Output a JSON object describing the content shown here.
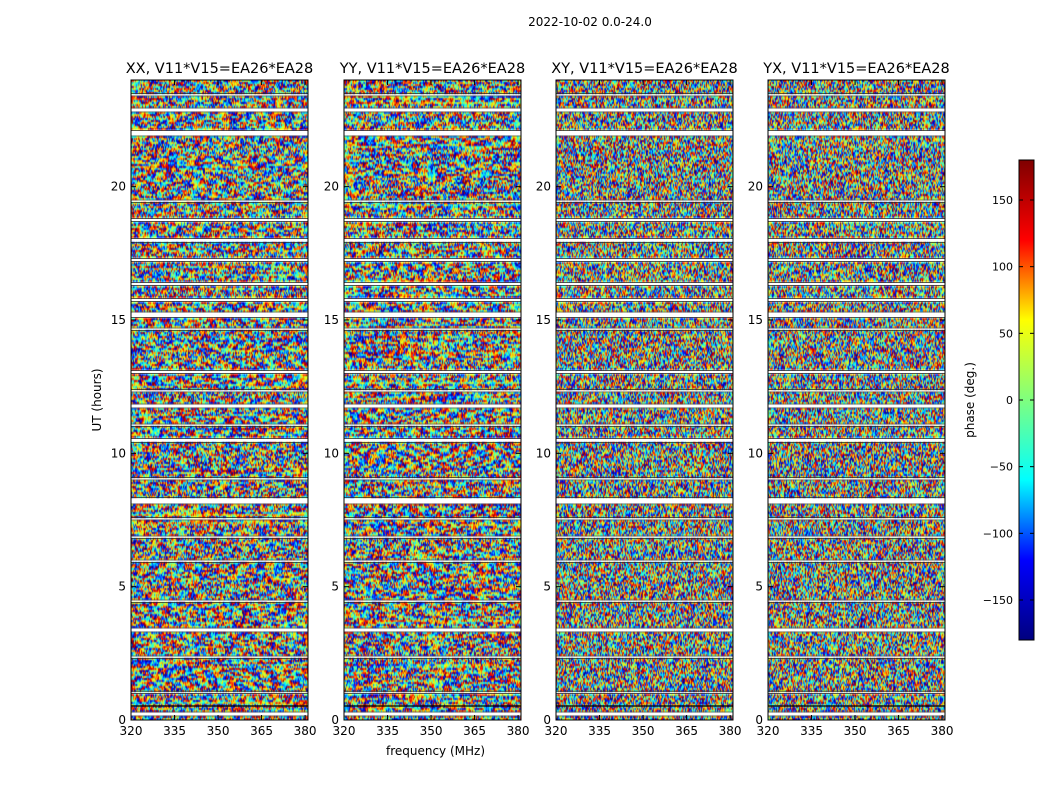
{
  "figure": {
    "suptitle": "2022-10-02 0.0-24.0"
  },
  "colorbar": {
    "label": "phase (deg.)",
    "range": [
      -180,
      180
    ],
    "ticks": [
      150,
      100,
      50,
      0,
      -50,
      -100,
      -150
    ],
    "tick_labels": [
      "150",
      "100",
      "50",
      "0",
      "−50",
      "−100",
      "−150"
    ],
    "colormap": "jet",
    "colors": [
      "#00007f",
      "#0000ff",
      "#00ffff",
      "#7fff7f",
      "#ffff00",
      "#ff0000",
      "#7f0000"
    ]
  },
  "chart_data": [
    {
      "type": "heatmap",
      "title": "XX, V11*V15=EA26*EA28",
      "xlabel": "",
      "ylabel": "UT (hours)",
      "xlim": [
        320,
        381
      ],
      "ylim": [
        0,
        24
      ],
      "xticks": [
        320,
        335,
        350,
        365,
        380
      ],
      "yticks": [
        0,
        5,
        10,
        15,
        20
      ],
      "value": "phase (deg.)"
    },
    {
      "type": "heatmap",
      "title": "YY, V11*V15=EA26*EA28",
      "xlabel": "frequency (MHz)",
      "ylabel": "",
      "xlim": [
        320,
        381
      ],
      "ylim": [
        0,
        24
      ],
      "xticks": [
        320,
        335,
        350,
        365,
        380
      ],
      "yticks": [
        0,
        5,
        10,
        15,
        20
      ],
      "value": "phase (deg.)"
    },
    {
      "type": "heatmap",
      "title": "XY, V11*V15=EA26*EA28",
      "xlabel": "",
      "ylabel": "",
      "xlim": [
        320,
        381
      ],
      "ylim": [
        0,
        24
      ],
      "xticks": [
        320,
        335,
        350,
        365,
        380
      ],
      "yticks": [
        0,
        5,
        10,
        15,
        20
      ],
      "value": "phase (deg.)"
    },
    {
      "type": "heatmap",
      "title": "YX, V11*V15=EA26*EA28",
      "xlabel": "",
      "ylabel": "",
      "xlim": [
        320,
        381
      ],
      "ylim": [
        0,
        24
      ],
      "xticks": [
        320,
        335,
        350,
        365,
        380
      ],
      "yticks": [
        0,
        5,
        10,
        15,
        20
      ],
      "value": "phase (deg.)"
    }
  ],
  "flagged_ut_hours": [
    [
      0.15,
      0.3
    ],
    [
      0.5,
      0.55
    ],
    [
      1.0,
      1.08
    ],
    [
      2.3,
      2.4
    ],
    [
      3.3,
      3.45
    ],
    [
      4.4,
      4.5
    ],
    [
      5.9,
      6.0
    ],
    [
      6.8,
      6.9
    ],
    [
      7.5,
      7.6
    ],
    [
      8.1,
      8.35
    ],
    [
      9.0,
      9.1
    ],
    [
      10.4,
      10.55
    ],
    [
      11.0,
      11.1
    ],
    [
      11.7,
      11.85
    ],
    [
      12.3,
      12.4
    ],
    [
      13.0,
      13.1
    ],
    [
      14.6,
      14.7
    ],
    [
      15.1,
      15.3
    ],
    [
      15.7,
      15.8
    ],
    [
      16.3,
      16.4
    ],
    [
      17.2,
      17.3
    ],
    [
      17.9,
      18.05
    ],
    [
      18.7,
      18.8
    ],
    [
      19.4,
      19.5
    ],
    [
      21.9,
      22.1
    ],
    [
      22.8,
      22.95
    ],
    [
      23.4,
      23.5
    ]
  ]
}
